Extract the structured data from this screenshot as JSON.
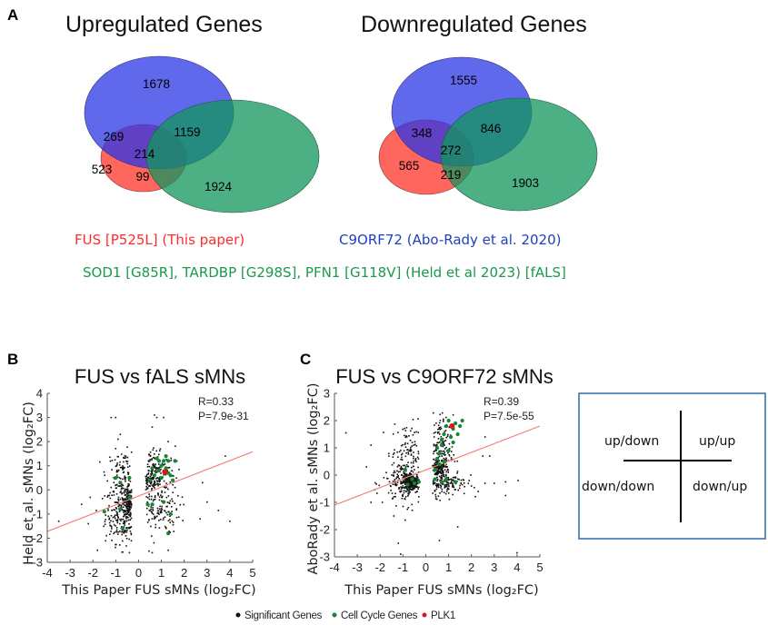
{
  "panels": {
    "A": "A",
    "B": "B",
    "C": "C"
  },
  "venn": {
    "up": {
      "title": "Upregulated Genes",
      "regions": {
        "fus_only": 523,
        "c9_only": 1678,
        "fals_only": 1924,
        "fus_c9": 269,
        "c9_fals": 1159,
        "fus_fals": 99,
        "all_three": 214
      }
    },
    "down": {
      "title": "Downregulated Genes",
      "regions": {
        "fus_only": 565,
        "c9_only": 1555,
        "fals_only": 1903,
        "fus_c9": 348,
        "c9_fals": 846,
        "fus_fals": 219,
        "all_three": 272
      }
    },
    "sets": [
      {
        "name": "FUS [P525L] (This paper)",
        "color": "#ff2b2b",
        "fill": "#ff3b30"
      },
      {
        "name": "C9ORF72 (Abo-Rady et al. 2020)",
        "color": "#1f3fbf",
        "fill": "#2b35e6"
      },
      {
        "name": "SOD1 [G85R], TARDBP [G298S], PFN1 [G118V] (Held et al 2023) [fALS]",
        "color": "#1a9a4a",
        "fill": "#12955c"
      }
    ]
  },
  "legend": {
    "items": [
      {
        "label": "Significant Genes",
        "color": "#111111"
      },
      {
        "label": "Cell Cycle Genes",
        "color": "#118833"
      },
      {
        "label": "PLK1",
        "color": "#e8101a"
      }
    ]
  },
  "quadrant_key": {
    "top_left": "up/down",
    "top_right": "up/up",
    "bottom_left": "down/down",
    "bottom_right": "down/up",
    "border_color": "#2e6aa8"
  },
  "chart_data": [
    {
      "type": "scatter",
      "panel": "B",
      "title": "FUS vs fALS sMNs",
      "xlabel": "This Paper FUS sMNs (log₂FC)",
      "ylabel": "Held et al. sMNs (log₂FC)",
      "xlim": [
        -4,
        5
      ],
      "ylim": [
        -3,
        4
      ],
      "xticks": [
        -4,
        -3,
        -2,
        -1,
        0,
        1,
        2,
        3,
        4,
        5
      ],
      "yticks": [
        -3,
        -2,
        -1,
        0,
        1,
        2,
        3,
        4
      ],
      "grid": false,
      "annotations": [
        "R=0.33",
        "P=7.9e-31"
      ],
      "fit_line": {
        "x": [
          -4,
          5
        ],
        "y": [
          -1.72,
          1.58
        ],
        "color": "#f08080"
      },
      "clusters": [
        {
          "series": "Significant Genes",
          "cx": -0.55,
          "cy": -1.0,
          "sx": 0.45,
          "sy": 0.6,
          "n": 340
        },
        {
          "series": "Significant Genes",
          "cx": -0.4,
          "cy": -0.5,
          "sx": 0.12,
          "sy": 0.35,
          "n": 120
        },
        {
          "series": "Significant Genes",
          "cx": -0.7,
          "cy": 0.7,
          "sx": 0.35,
          "sy": 0.45,
          "n": 110
        },
        {
          "series": "Significant Genes",
          "cx": 0.7,
          "cy": 0.8,
          "sx": 0.45,
          "sy": 0.5,
          "n": 170
        },
        {
          "series": "Significant Genes",
          "cx": 0.8,
          "cy": -0.8,
          "sx": 0.5,
          "sy": 0.5,
          "n": 150
        },
        {
          "series": "Significant Genes",
          "cx": 0.5,
          "cy": 0.4,
          "sx": 0.15,
          "sy": 0.15,
          "n": 60
        }
      ],
      "sparse_points": [
        [
          -3.5,
          -1.3
        ],
        [
          -2.5,
          -0.6
        ],
        [
          -2.2,
          -1.4
        ],
        [
          -1.8,
          -2.5
        ],
        [
          -1.2,
          3.0
        ],
        [
          -1.0,
          3.0
        ],
        [
          -0.8,
          2.3
        ],
        [
          -0.9,
          2.1
        ],
        [
          0.7,
          3.1
        ],
        [
          0.8,
          3.0
        ],
        [
          1.1,
          3.0
        ],
        [
          0.6,
          2.6
        ],
        [
          1.3,
          2.0
        ],
        [
          3.0,
          -0.5
        ],
        [
          3.5,
          -0.85
        ],
        [
          4.0,
          -1.3
        ],
        [
          3.8,
          1.4
        ],
        [
          2.7,
          -1.2
        ],
        [
          2.8,
          0.3
        ],
        [
          -0.4,
          -2.6
        ],
        [
          0.6,
          -2.6
        ],
        [
          1.3,
          -2.5
        ]
      ],
      "cell_cycle_points": [
        [
          0.5,
          0.4
        ],
        [
          0.7,
          0.6
        ],
        [
          0.9,
          0.8
        ],
        [
          1.0,
          1.0
        ],
        [
          1.1,
          1.2
        ],
        [
          1.2,
          0.9
        ],
        [
          0.8,
          1.3
        ],
        [
          1.3,
          1.2
        ],
        [
          1.4,
          0.6
        ],
        [
          1.5,
          0.4
        ],
        [
          1.0,
          0.5
        ],
        [
          0.6,
          0.9
        ],
        [
          0.9,
          1.2
        ],
        [
          1.2,
          1.4
        ],
        [
          1.6,
          1.2
        ],
        [
          1.3,
          0.7
        ],
        [
          -1.0,
          0.5
        ],
        [
          -0.8,
          0.3
        ],
        [
          -0.4,
          0.5
        ],
        [
          -0.4,
          -0.3
        ],
        [
          -1.5,
          -0.9
        ],
        [
          -0.8,
          -0.8
        ],
        [
          -0.7,
          -1.6
        ],
        [
          0.4,
          -0.6
        ],
        [
          0.6,
          -0.6
        ],
        [
          1.1,
          -0.5
        ],
        [
          1.4,
          -1.0
        ],
        [
          1.3,
          -1.8
        ]
      ],
      "highlight_points": [
        {
          "label": "PLK1",
          "x": 1.15,
          "y": 0.75
        }
      ]
    },
    {
      "type": "scatter",
      "panel": "C",
      "title": "FUS vs C9ORF72 sMNs",
      "xlabel": "This Paper FUS sMNs (log₂FC)",
      "ylabel": "AboRady et al. sMNs (log₂FC)",
      "xlim": [
        -4,
        5
      ],
      "ylim": [
        -3,
        3
      ],
      "xticks": [
        -4,
        -3,
        -2,
        -1,
        0,
        1,
        2,
        3,
        4,
        5
      ],
      "yticks": [
        -3,
        -2,
        -1,
        0,
        1,
        2,
        3
      ],
      "grid": false,
      "annotations": [
        "R=0.39",
        "P=7.5e-55"
      ],
      "fit_line": {
        "x": [
          -4,
          5
        ],
        "y": [
          -1.1,
          1.8
        ],
        "color": "#f08080"
      },
      "clusters": [
        {
          "series": "Significant Genes",
          "cx": -0.6,
          "cy": -0.25,
          "sx": 0.2,
          "sy": 0.12,
          "n": 260
        },
        {
          "series": "Significant Genes",
          "cx": -0.8,
          "cy": -0.3,
          "sx": 0.55,
          "sy": 0.4,
          "n": 200
        },
        {
          "series": "Significant Genes",
          "cx": -0.8,
          "cy": 0.8,
          "sx": 0.35,
          "sy": 0.6,
          "n": 120
        },
        {
          "series": "Significant Genes",
          "cx": 0.6,
          "cy": 0.8,
          "sx": 0.3,
          "sy": 0.7,
          "n": 200
        },
        {
          "series": "Significant Genes",
          "cx": 0.9,
          "cy": -0.25,
          "sx": 0.45,
          "sy": 0.25,
          "n": 160
        },
        {
          "series": "Significant Genes",
          "cx": 0.5,
          "cy": 0.3,
          "sx": 0.15,
          "sy": 0.15,
          "n": 80
        }
      ],
      "sparse_points": [
        [
          -3.5,
          1.55
        ],
        [
          -2.4,
          1.1
        ],
        [
          -2.6,
          0.3
        ],
        [
          -2.4,
          -1.0
        ],
        [
          -1.9,
          -1.0
        ],
        [
          -1.4,
          -1.5
        ],
        [
          -1.2,
          -2.5
        ],
        [
          -0.9,
          -1.65
        ],
        [
          0.6,
          -2.4
        ],
        [
          1.4,
          -1.9
        ],
        [
          2.0,
          -0.4
        ],
        [
          2.3,
          -0.6
        ],
        [
          2.6,
          -0.3
        ],
        [
          3.0,
          -0.3
        ],
        [
          3.5,
          -0.25
        ],
        [
          3.5,
          -0.75
        ],
        [
          4.05,
          -0.2
        ],
        [
          2.5,
          0.7
        ],
        [
          2.8,
          0.7
        ],
        [
          2.6,
          1.4
        ],
        [
          4.0,
          -2.85
        ],
        [
          -1.1,
          -2.9
        ]
      ],
      "cell_cycle_points": [
        [
          0.9,
          1.8
        ],
        [
          1.0,
          2.0
        ],
        [
          1.2,
          1.7
        ],
        [
          1.3,
          1.9
        ],
        [
          1.5,
          1.8
        ],
        [
          1.6,
          2.0
        ],
        [
          1.4,
          1.5
        ],
        [
          1.1,
          1.4
        ],
        [
          0.8,
          1.5
        ],
        [
          0.7,
          1.1
        ],
        [
          0.6,
          0.8
        ],
        [
          0.5,
          0.6
        ],
        [
          0.6,
          0.4
        ],
        [
          0.4,
          0.2
        ],
        [
          0.8,
          0.5
        ],
        [
          1.0,
          0.9
        ],
        [
          0.5,
          1.0
        ],
        [
          0.7,
          1.3
        ],
        [
          1.2,
          1.2
        ],
        [
          -0.6,
          -0.15
        ],
        [
          -0.5,
          -0.3
        ],
        [
          -0.3,
          -0.25
        ],
        [
          -0.8,
          -0.35
        ],
        [
          -0.9,
          0.2
        ],
        [
          0.4,
          -0.15
        ],
        [
          0.7,
          -0.25
        ],
        [
          1.3,
          -0.25
        ],
        [
          0.9,
          -0.15
        ]
      ],
      "highlight_points": [
        {
          "label": "PLK1",
          "x": 1.15,
          "y": 1.8
        }
      ]
    }
  ]
}
